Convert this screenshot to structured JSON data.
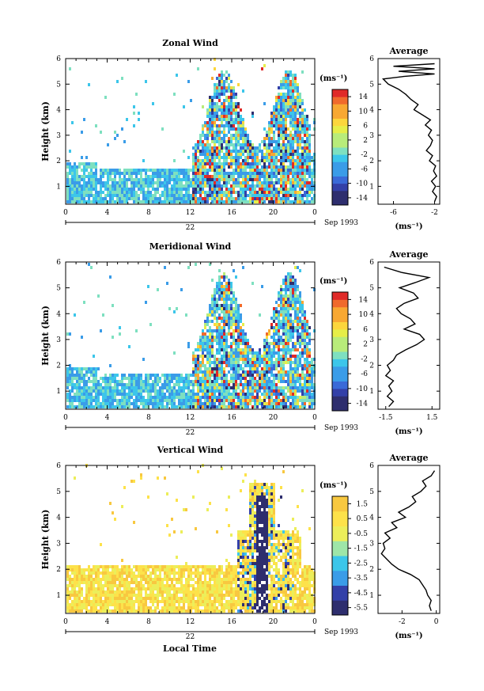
{
  "figure": {
    "xlabel_bottom": "Local Time",
    "date_label": "Sep 1993",
    "day_label": "22",
    "colorbar_unit": "(ms⁻¹)"
  },
  "chart_data": [
    {
      "type": "heatmap",
      "title": "Zonal Wind",
      "ylabel": "Height (km)",
      "x_ticks": [
        "0",
        "4",
        "8",
        "12",
        "16",
        "20",
        "0"
      ],
      "xlim": [
        0,
        24
      ],
      "y_ticks": [
        "1",
        "2",
        "3",
        "4",
        "5",
        "6"
      ],
      "ylim": [
        0.3,
        6
      ],
      "colorbar": {
        "unit": "(ms⁻¹)",
        "ticks": [
          "14",
          "10",
          "6",
          "2",
          "-2",
          "-6",
          "-10",
          "-14"
        ],
        "range": [
          -16,
          16
        ]
      },
      "profile": {
        "title": "Average",
        "xlabel": "(ms⁻¹)",
        "x_ticks": [
          "-6",
          "-2"
        ],
        "x_tick_values": [
          -6,
          -2
        ],
        "xlim": [
          -7.5,
          -1.5
        ],
        "y_ticks": [
          "1",
          "2",
          "3",
          "4",
          "5",
          "6"
        ],
        "points": [
          [
            -2.0,
            0.4
          ],
          [
            -1.8,
            0.6
          ],
          [
            -2.2,
            0.8
          ],
          [
            -1.9,
            1.0
          ],
          [
            -2.3,
            1.2
          ],
          [
            -1.8,
            1.4
          ],
          [
            -2.1,
            1.6
          ],
          [
            -1.9,
            1.8
          ],
          [
            -2.5,
            2.0
          ],
          [
            -2.2,
            2.2
          ],
          [
            -2.8,
            2.4
          ],
          [
            -2.4,
            2.6
          ],
          [
            -2.2,
            2.8
          ],
          [
            -2.6,
            3.0
          ],
          [
            -2.3,
            3.2
          ],
          [
            -2.9,
            3.4
          ],
          [
            -2.4,
            3.6
          ],
          [
            -3.2,
            3.8
          ],
          [
            -4.0,
            4.0
          ],
          [
            -3.6,
            4.2
          ],
          [
            -4.3,
            4.4
          ],
          [
            -4.8,
            4.6
          ],
          [
            -5.5,
            4.8
          ],
          [
            -6.5,
            5.0
          ],
          [
            -7.0,
            5.2
          ],
          [
            -5.0,
            5.3
          ],
          [
            -2.0,
            5.4
          ],
          [
            -5.5,
            5.5
          ],
          [
            -2.0,
            5.6
          ],
          [
            -6.0,
            5.7
          ],
          [
            -2.0,
            5.8
          ]
        ]
      }
    },
    {
      "type": "heatmap",
      "title": "Meridional Wind",
      "ylabel": "Height (km)",
      "x_ticks": [
        "0",
        "4",
        "8",
        "12",
        "16",
        "20",
        "0"
      ],
      "xlim": [
        0,
        24
      ],
      "y_ticks": [
        "1",
        "2",
        "3",
        "4",
        "5",
        "6"
      ],
      "ylim": [
        0.3,
        6
      ],
      "colorbar": {
        "unit": "(ms⁻¹)",
        "ticks": [
          "14",
          "10",
          "6",
          "2",
          "-2",
          "-6",
          "-10",
          "-14"
        ],
        "range": [
          -16,
          16
        ]
      },
      "profile": {
        "title": "Average",
        "xlabel": "(ms⁻¹)",
        "x_ticks": [
          "-1.5",
          "1.5"
        ],
        "x_tick_values": [
          -1.5,
          1.5
        ],
        "xlim": [
          -2.0,
          2.0
        ],
        "y_ticks": [
          "1",
          "2",
          "3",
          "4",
          "5",
          "6"
        ],
        "points": [
          [
            -1.3,
            0.4
          ],
          [
            -1.0,
            0.6
          ],
          [
            -1.4,
            0.8
          ],
          [
            -1.1,
            1.0
          ],
          [
            -1.3,
            1.2
          ],
          [
            -1.0,
            1.4
          ],
          [
            -1.5,
            1.6
          ],
          [
            -1.2,
            1.8
          ],
          [
            -1.4,
            2.0
          ],
          [
            -1.0,
            2.2
          ],
          [
            -0.8,
            2.4
          ],
          [
            -0.2,
            2.6
          ],
          [
            0.5,
            2.8
          ],
          [
            1.0,
            3.0
          ],
          [
            0.7,
            3.2
          ],
          [
            -0.3,
            3.4
          ],
          [
            0.4,
            3.6
          ],
          [
            0.1,
            3.8
          ],
          [
            -0.5,
            4.0
          ],
          [
            -0.8,
            4.2
          ],
          [
            -0.3,
            4.4
          ],
          [
            0.6,
            4.6
          ],
          [
            0.3,
            4.8
          ],
          [
            -0.6,
            5.0
          ],
          [
            0.4,
            5.2
          ],
          [
            1.3,
            5.4
          ],
          [
            -0.5,
            5.6
          ],
          [
            -1.6,
            5.8
          ]
        ]
      }
    },
    {
      "type": "heatmap",
      "title": "Vertical Wind",
      "ylabel": "Height (km)",
      "x_ticks": [
        "0",
        "4",
        "8",
        "12",
        "16",
        "20",
        "0"
      ],
      "xlim": [
        0,
        24
      ],
      "y_ticks": [
        "1",
        "2",
        "3",
        "4",
        "5",
        "6"
      ],
      "ylim": [
        0.3,
        6
      ],
      "colorbar": {
        "unit": "(ms⁻¹)",
        "ticks": [
          "1.5",
          "0.5",
          "-0.5",
          "-1.5",
          "-2.5",
          "-3.5",
          "-4.5",
          "-5.5"
        ],
        "range": [
          -6,
          2
        ]
      },
      "profile": {
        "title": "Average",
        "xlabel": "(ms⁻¹)",
        "x_ticks": [
          "-2",
          "0"
        ],
        "x_tick_values": [
          -2,
          0
        ],
        "xlim": [
          -3.4,
          0.2
        ],
        "y_ticks": [
          "1",
          "2",
          "3",
          "4",
          "5",
          "6"
        ],
        "points": [
          [
            -0.3,
            0.4
          ],
          [
            -0.4,
            0.6
          ],
          [
            -0.3,
            0.8
          ],
          [
            -0.5,
            1.0
          ],
          [
            -0.6,
            1.2
          ],
          [
            -0.8,
            1.4
          ],
          [
            -1.0,
            1.6
          ],
          [
            -1.5,
            1.8
          ],
          [
            -2.2,
            2.0
          ],
          [
            -2.6,
            2.2
          ],
          [
            -2.9,
            2.4
          ],
          [
            -3.2,
            2.6
          ],
          [
            -3.0,
            2.8
          ],
          [
            -3.1,
            3.0
          ],
          [
            -2.7,
            3.2
          ],
          [
            -3.0,
            3.4
          ],
          [
            -2.3,
            3.6
          ],
          [
            -2.6,
            3.8
          ],
          [
            -1.8,
            4.0
          ],
          [
            -2.2,
            4.2
          ],
          [
            -1.6,
            4.4
          ],
          [
            -1.2,
            4.6
          ],
          [
            -1.4,
            4.8
          ],
          [
            -0.9,
            5.0
          ],
          [
            -0.6,
            5.2
          ],
          [
            -0.8,
            5.4
          ],
          [
            -0.3,
            5.6
          ],
          [
            -0.1,
            5.8
          ]
        ]
      }
    }
  ]
}
